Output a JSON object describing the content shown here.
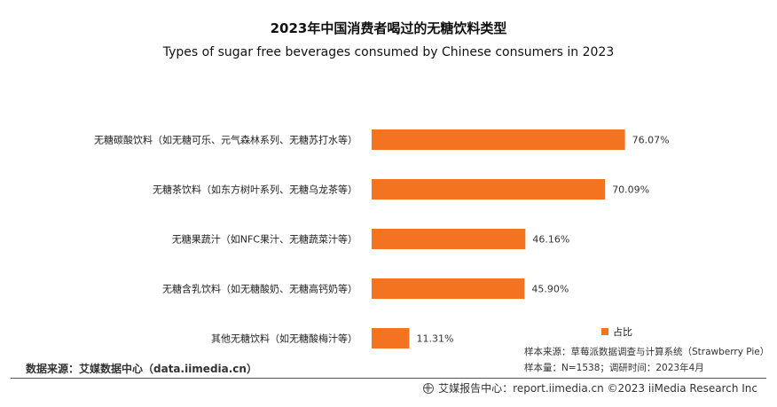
{
  "header": {
    "title_cn": "2023年中国消费者喝过的无糖饮料类型",
    "title_en": "Types of sugar free beverages consumed by Chinese consumers in 2023"
  },
  "chart_data": {
    "type": "bar",
    "orientation": "horizontal",
    "title": "2023年中国消费者喝过的无糖饮料类型",
    "subtitle": "Types of sugar free beverages consumed by Chinese consumers in 2023",
    "categories": [
      "无糖碳酸饮料（如无糖可乐、元气森林系列、无糖苏打水等）",
      "无糖茶饮料（如东方树叶系列、无糖乌龙茶等）",
      "无糖果蔬汁（如NFC果汁、无糖蔬菜汁等）",
      "无糖含乳饮料（如无糖酸奶、无糖高钙奶等）",
      "其他无糖饮料（如无糖酸梅汁等）"
    ],
    "values": [
      76.07,
      70.09,
      46.16,
      45.9,
      11.31
    ],
    "value_labels": [
      "76.07%",
      "70.09%",
      "46.16%",
      "45.90%",
      "11.31%"
    ],
    "series": [
      {
        "name": "占比",
        "values": [
          76.07,
          70.09,
          46.16,
          45.9,
          11.31
        ]
      }
    ],
    "xlim": [
      0,
      100
    ],
    "grid": false,
    "legend_position": "bottom-right",
    "bar_color": "#f47320"
  },
  "legend": {
    "label": "占比"
  },
  "notes": {
    "sample_source": "样本来源：草莓派数据调查与计算系统（Strawberry Pie）",
    "sample_size": "样本量：N=1538；调研时间：2023年4月"
  },
  "data_source": "数据来源：艾媒数据中心（data.iimedia.cn）",
  "footer": {
    "icon": "globe-icon",
    "text": "艾媒报告中心：report.iimedia.cn   ©2023  iiMedia Research  Inc"
  }
}
